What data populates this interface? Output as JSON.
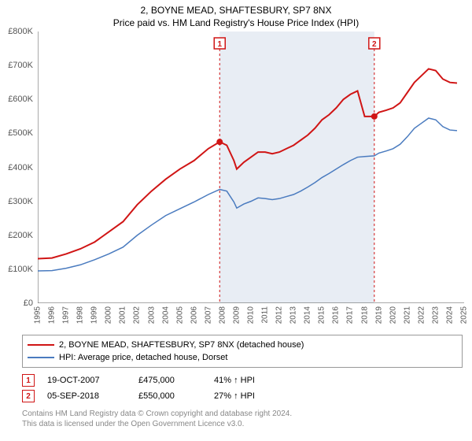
{
  "title_line1": "2, BOYNE MEAD, SHAFTESBURY, SP7 8NX",
  "title_line2": "Price paid vs. HM Land Registry's House Price Index (HPI)",
  "chart": {
    "type": "line",
    "background_color": "#ffffff",
    "shaded_region": {
      "from": 2007.8,
      "to": 2018.68,
      "color": "#e8edf4"
    },
    "ylim": [
      0,
      800000
    ],
    "xlim": [
      1995,
      2025
    ],
    "y_ticks": [
      0,
      100000,
      200000,
      300000,
      400000,
      500000,
      600000,
      700000,
      800000
    ],
    "y_tick_labels": [
      "£0",
      "£100K",
      "£200K",
      "£300K",
      "£400K",
      "£500K",
      "£600K",
      "£700K",
      "£800K"
    ],
    "x_ticks": [
      1995,
      1996,
      1997,
      1998,
      1999,
      2000,
      2001,
      2002,
      2003,
      2004,
      2005,
      2006,
      2007,
      2008,
      2009,
      2010,
      2011,
      2012,
      2013,
      2014,
      2015,
      2016,
      2017,
      2018,
      2019,
      2020,
      2021,
      2022,
      2023,
      2024,
      2025
    ],
    "grid": false,
    "series": [
      {
        "name": "2, BOYNE MEAD, SHAFTESBURY, SP7 8NX (detached house)",
        "color": "#d01515",
        "width": 2,
        "data": [
          [
            1995,
            131000
          ],
          [
            1996,
            133000
          ],
          [
            1997,
            145000
          ],
          [
            1998,
            160000
          ],
          [
            1999,
            180000
          ],
          [
            2000,
            210000
          ],
          [
            2001,
            240000
          ],
          [
            2002,
            290000
          ],
          [
            2003,
            330000
          ],
          [
            2004,
            365000
          ],
          [
            2005,
            395000
          ],
          [
            2006,
            420000
          ],
          [
            2007,
            455000
          ],
          [
            2007.8,
            475000
          ],
          [
            2008.3,
            465000
          ],
          [
            2008.8,
            420000
          ],
          [
            2009,
            395000
          ],
          [
            2009.5,
            415000
          ],
          [
            2010,
            430000
          ],
          [
            2010.5,
            445000
          ],
          [
            2011,
            445000
          ],
          [
            2011.5,
            440000
          ],
          [
            2012,
            445000
          ],
          [
            2012.5,
            455000
          ],
          [
            2013,
            465000
          ],
          [
            2013.5,
            480000
          ],
          [
            2014,
            495000
          ],
          [
            2014.5,
            515000
          ],
          [
            2015,
            540000
          ],
          [
            2015.5,
            555000
          ],
          [
            2016,
            575000
          ],
          [
            2016.5,
            600000
          ],
          [
            2017,
            615000
          ],
          [
            2017.5,
            625000
          ],
          [
            2018,
            550000
          ],
          [
            2018.68,
            550000
          ],
          [
            2019,
            562000
          ],
          [
            2019.5,
            568000
          ],
          [
            2020,
            575000
          ],
          [
            2020.5,
            590000
          ],
          [
            2021,
            620000
          ],
          [
            2021.5,
            650000
          ],
          [
            2022,
            670000
          ],
          [
            2022.5,
            690000
          ],
          [
            2023,
            685000
          ],
          [
            2023.5,
            660000
          ],
          [
            2024,
            650000
          ],
          [
            2024.5,
            648000
          ]
        ],
        "markers": [
          {
            "x": 2007.8,
            "y": 475000,
            "r": 4
          },
          {
            "x": 2018.68,
            "y": 550000,
            "r": 4
          }
        ]
      },
      {
        "name": "HPI: Average price, detached house, Dorset",
        "color": "#4a7bbf",
        "width": 1.5,
        "data": [
          [
            1995,
            95000
          ],
          [
            1996,
            96000
          ],
          [
            1997,
            103000
          ],
          [
            1998,
            113000
          ],
          [
            1999,
            128000
          ],
          [
            2000,
            145000
          ],
          [
            2001,
            165000
          ],
          [
            2002,
            200000
          ],
          [
            2003,
            230000
          ],
          [
            2004,
            258000
          ],
          [
            2005,
            278000
          ],
          [
            2006,
            298000
          ],
          [
            2007,
            320000
          ],
          [
            2007.8,
            335000
          ],
          [
            2008.3,
            330000
          ],
          [
            2008.8,
            298000
          ],
          [
            2009,
            280000
          ],
          [
            2009.5,
            292000
          ],
          [
            2010,
            300000
          ],
          [
            2010.5,
            310000
          ],
          [
            2011,
            308000
          ],
          [
            2011.5,
            305000
          ],
          [
            2012,
            308000
          ],
          [
            2012.5,
            314000
          ],
          [
            2013,
            320000
          ],
          [
            2013.5,
            330000
          ],
          [
            2014,
            342000
          ],
          [
            2014.5,
            355000
          ],
          [
            2015,
            370000
          ],
          [
            2015.5,
            382000
          ],
          [
            2016,
            395000
          ],
          [
            2016.5,
            408000
          ],
          [
            2017,
            420000
          ],
          [
            2017.5,
            430000
          ],
          [
            2018,
            432000
          ],
          [
            2018.68,
            434000
          ],
          [
            2019,
            442000
          ],
          [
            2019.5,
            448000
          ],
          [
            2020,
            455000
          ],
          [
            2020.5,
            468000
          ],
          [
            2021,
            490000
          ],
          [
            2021.5,
            515000
          ],
          [
            2022,
            530000
          ],
          [
            2022.5,
            545000
          ],
          [
            2023,
            540000
          ],
          [
            2023.5,
            520000
          ],
          [
            2024,
            510000
          ],
          [
            2024.5,
            508000
          ]
        ]
      }
    ]
  },
  "legend": {
    "items": [
      {
        "label": "2, BOYNE MEAD, SHAFTESBURY, SP7 8NX (detached house)",
        "color": "#d01515"
      },
      {
        "label": "HPI: Average price, detached house, Dorset",
        "color": "#4a7bbf"
      }
    ]
  },
  "events": [
    {
      "badge": "1",
      "date": "19-OCT-2007",
      "price": "£475,000",
      "hpi": "41% ↑ HPI",
      "badge_color": "#d01515"
    },
    {
      "badge": "2",
      "date": "05-SEP-2018",
      "price": "£550,000",
      "hpi": "27% ↑ HPI",
      "badge_color": "#d01515"
    }
  ],
  "event_markers": [
    {
      "badge": "1",
      "x": 2007.8,
      "color": "#d01515"
    },
    {
      "badge": "2",
      "x": 2018.68,
      "color": "#d01515"
    }
  ],
  "disclaimer_line1": "Contains HM Land Registry data © Crown copyright and database right 2024.",
  "disclaimer_line2": "This data is licensed under the Open Government Licence v3.0."
}
